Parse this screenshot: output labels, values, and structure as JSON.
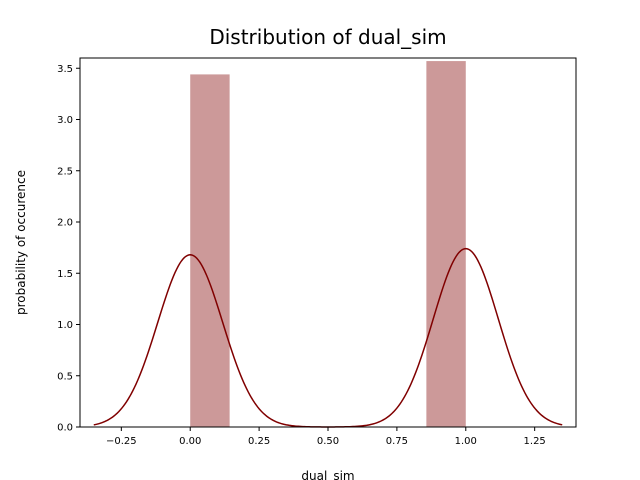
{
  "chart_data": {
    "type": "bar",
    "title": "Distribution of dual_sim",
    "xlabel": "dual_sim",
    "ylabel": "probability of occurence",
    "xlim": [
      -0.4,
      1.4
    ],
    "ylim": [
      0,
      3.6
    ],
    "xticks": [
      -0.25,
      0.0,
      0.25,
      0.5,
      0.75,
      1.0,
      1.25
    ],
    "xtick_labels": [
      "−0.25",
      "0.00",
      "0.25",
      "0.50",
      "0.75",
      "1.00",
      "1.25"
    ],
    "yticks": [
      0.0,
      0.5,
      1.0,
      1.5,
      2.0,
      2.5,
      3.0,
      3.5
    ],
    "ytick_labels": [
      "0.0",
      "0.5",
      "1.0",
      "1.5",
      "2.0",
      "2.5",
      "3.0",
      "3.5"
    ],
    "grid": false,
    "series": [
      {
        "name": "histogram",
        "type": "bar",
        "color": "#cc9999",
        "bins": [
          {
            "x0": 0.0,
            "x1": 0.143,
            "value": 3.44
          },
          {
            "x0": 0.857,
            "x1": 1.0,
            "value": 3.57
          }
        ]
      },
      {
        "name": "kde",
        "type": "line",
        "color": "#800000",
        "components": [
          {
            "center": 0.0,
            "sigma": 0.118,
            "peak": 1.68
          },
          {
            "center": 1.0,
            "sigma": 0.118,
            "peak": 1.74
          }
        ],
        "x_range": [
          -0.35,
          1.35
        ]
      }
    ]
  }
}
